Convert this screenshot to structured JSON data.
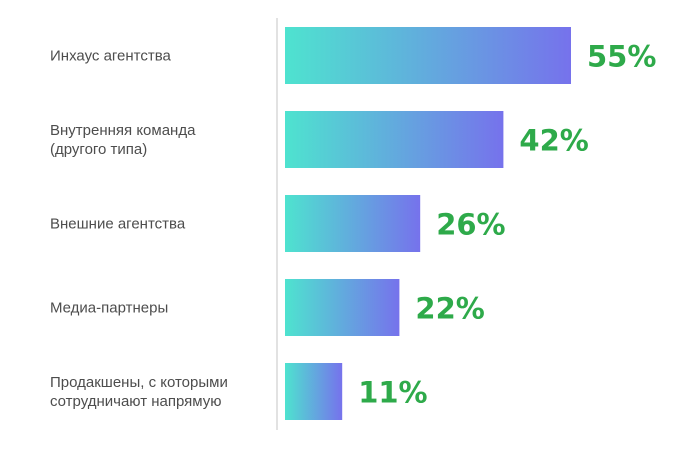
{
  "chart_data": {
    "type": "bar",
    "orientation": "horizontal",
    "categories": [
      [
        "Инхаус агентства"
      ],
      [
        "Внутренняя команда",
        "(другого типа)"
      ],
      [
        "Внешние агентства"
      ],
      [
        "Медиа-партнеры"
      ],
      [
        "Продакшены, с которыми",
        "сотрудничают напрямую"
      ]
    ],
    "values": [
      55,
      42,
      26,
      22,
      11
    ],
    "value_labels": [
      "55%",
      "42%",
      "26%",
      "22%",
      "11%"
    ],
    "unit": "%",
    "xlim": [
      0,
      60
    ],
    "grid": false,
    "legend": "none",
    "colors": {
      "bar_gradient_start": "#4ee3cf",
      "bar_gradient_end": "#7672ec",
      "value_label": "#2eaa4a",
      "category_label": "#4d4d4d",
      "axis_line": "#e2e2e2"
    }
  }
}
